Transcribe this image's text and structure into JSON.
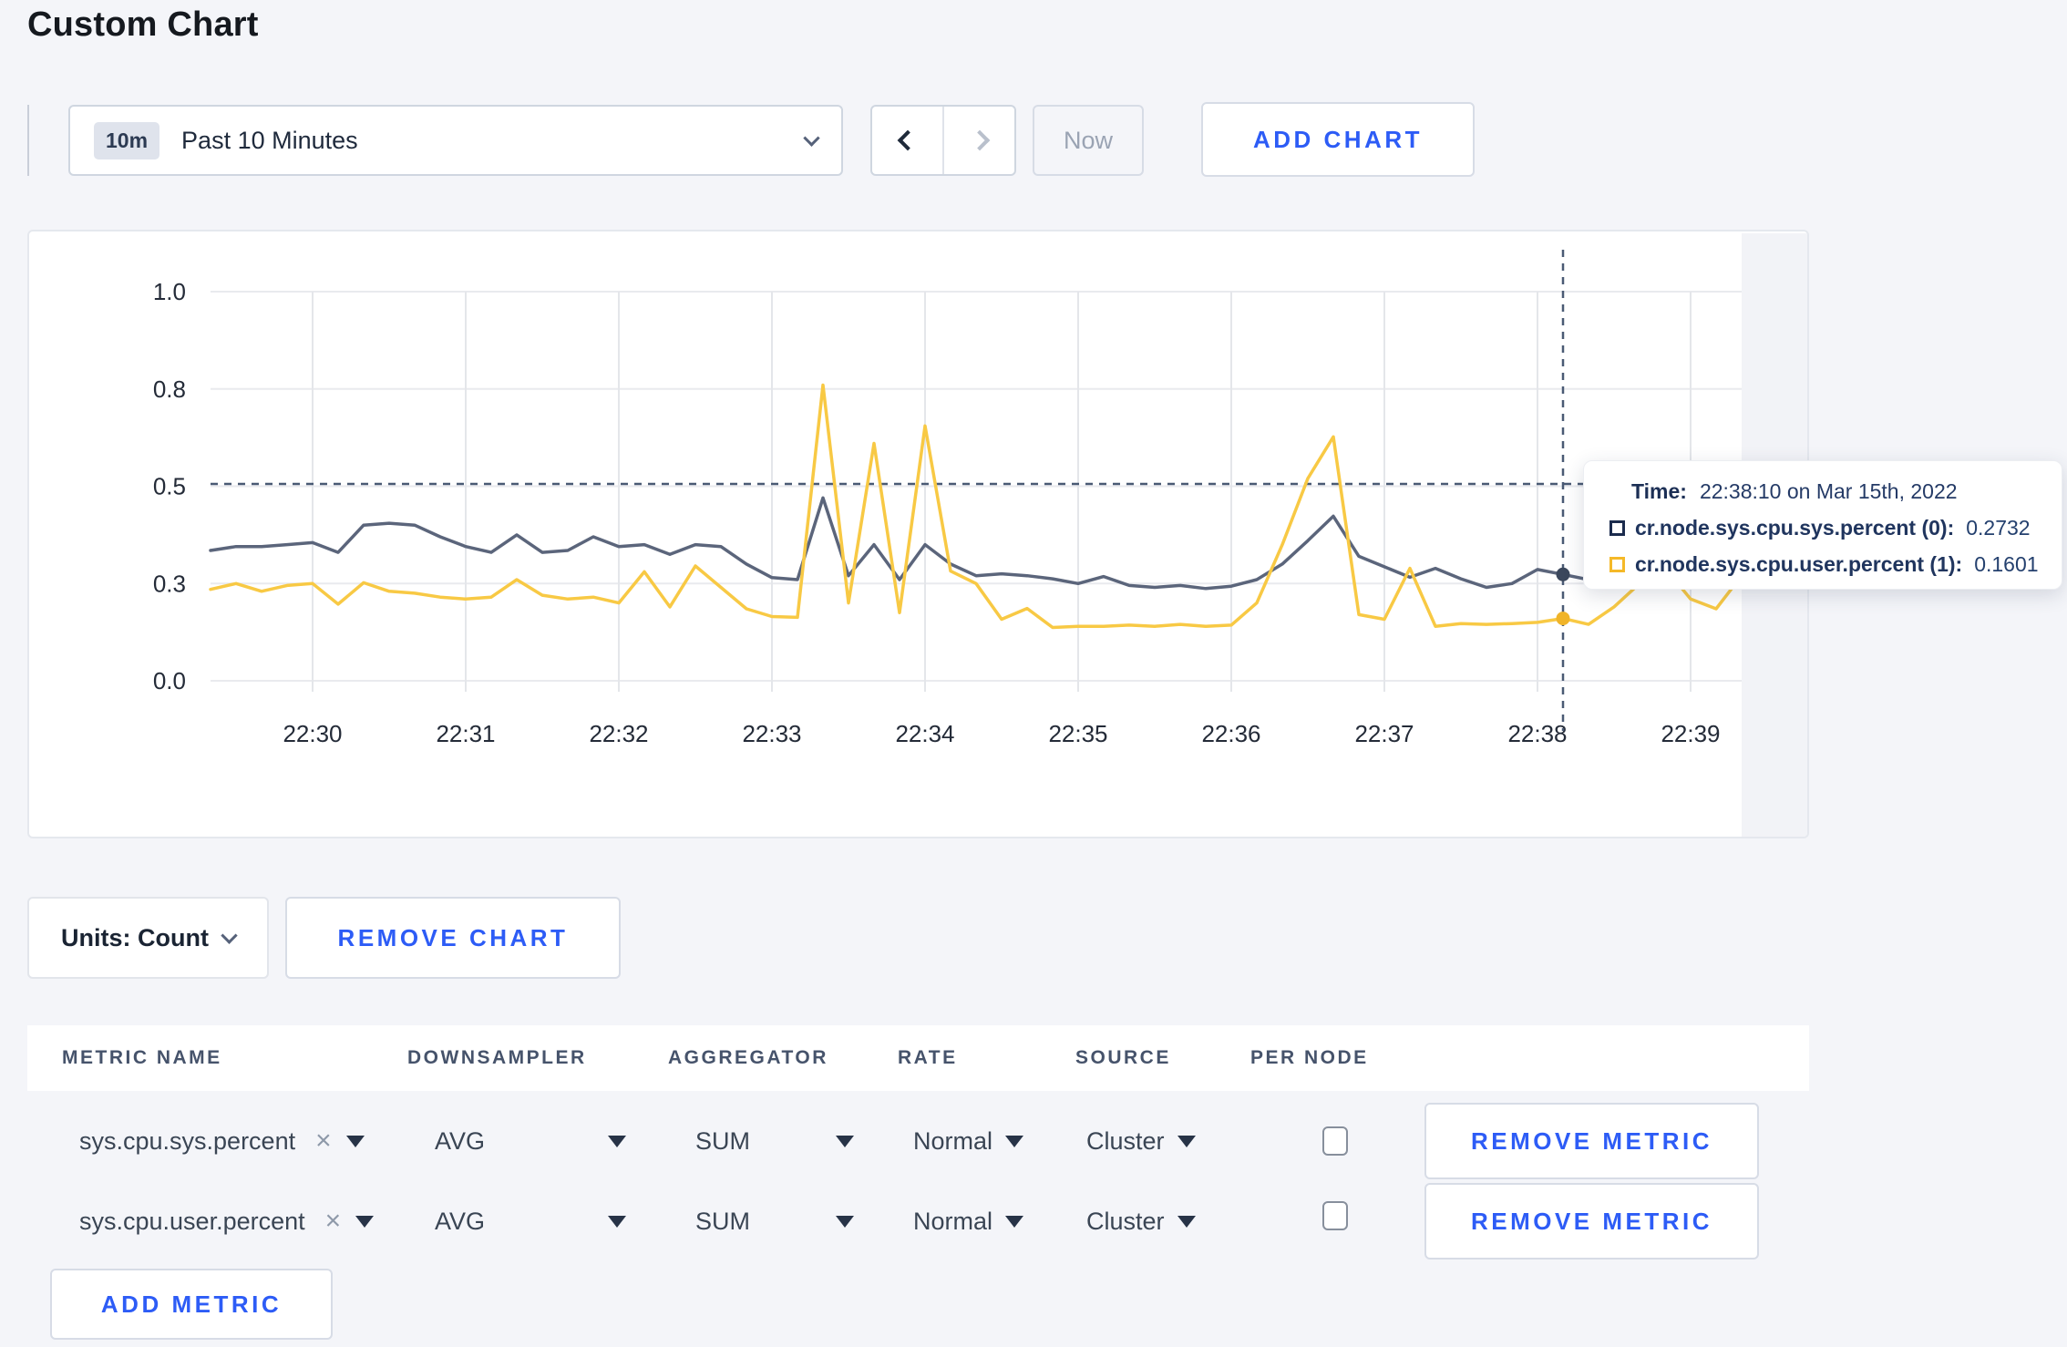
{
  "page": {
    "title": "Custom Chart",
    "background": "#f4f5f9"
  },
  "toolbar": {
    "timeframe_badge": "10m",
    "timeframe_label": "Past 10 Minutes",
    "now_label": "Now",
    "add_chart_label": "ADD CHART"
  },
  "chart_data": {
    "type": "line",
    "title": "",
    "x_axis": {
      "ticks": [
        "22:30",
        "22:31",
        "22:32",
        "22:33",
        "22:34",
        "22:35",
        "22:36",
        "22:37",
        "22:38",
        "22:39"
      ],
      "start_time": "22:29:20",
      "interval_seconds": 10
    },
    "y_axis": {
      "ticks": [
        {
          "label": "0.0",
          "value": 0
        },
        {
          "label": "0.3",
          "value": 0.25
        },
        {
          "label": "0.5",
          "value": 0.5
        },
        {
          "label": "0.8",
          "value": 0.75
        },
        {
          "label": "1.0",
          "value": 1
        }
      ],
      "range": [
        0,
        1
      ],
      "grid": true
    },
    "series": [
      {
        "name": "cr.node.sys.cpu.sys.percent",
        "node": "(0)",
        "color": "#5b657b",
        "dot_color": "#3b475c",
        "values": [
          0.335,
          0.345,
          0.345,
          0.35,
          0.355,
          0.33,
          0.4,
          0.405,
          0.4,
          0.37,
          0.345,
          0.33,
          0.375,
          0.33,
          0.335,
          0.37,
          0.345,
          0.35,
          0.325,
          0.35,
          0.345,
          0.3,
          0.265,
          0.26,
          0.47,
          0.27,
          0.35,
          0.26,
          0.35,
          0.3,
          0.27,
          0.275,
          0.27,
          0.262,
          0.25,
          0.268,
          0.245,
          0.24,
          0.245,
          0.237,
          0.243,
          0.26,
          0.3,
          0.36,
          0.423,
          0.32,
          0.293,
          0.266,
          0.289,
          0.262,
          0.24,
          0.25,
          0.286,
          0.2732,
          0.26,
          0.27,
          0.3,
          0.31,
          0.3,
          0.295,
          0.31
        ]
      },
      {
        "name": "cr.node.sys.cpu.user.percent",
        "node": "(1)",
        "color": "#f8c944",
        "dot_color": "#f0b429",
        "values": [
          0.235,
          0.25,
          0.23,
          0.245,
          0.25,
          0.197,
          0.252,
          0.23,
          0.225,
          0.215,
          0.21,
          0.215,
          0.26,
          0.22,
          0.21,
          0.215,
          0.2,
          0.28,
          0.19,
          0.295,
          0.24,
          0.185,
          0.165,
          0.163,
          0.76,
          0.2,
          0.61,
          0.175,
          0.655,
          0.282,
          0.25,
          0.158,
          0.186,
          0.137,
          0.14,
          0.14,
          0.143,
          0.14,
          0.145,
          0.14,
          0.143,
          0.2,
          0.35,
          0.52,
          0.627,
          0.17,
          0.158,
          0.289,
          0.14,
          0.147,
          0.145,
          0.147,
          0.15,
          0.1601,
          0.145,
          0.19,
          0.25,
          0.29,
          0.21,
          0.185,
          0.27
        ]
      }
    ],
    "crosshair": {
      "time": "22:38:10",
      "x_index": 53,
      "y_fraction": 0.506
    },
    "future_region_color": "#f2f3f7",
    "legend_position": "tooltip"
  },
  "tooltip": {
    "time_label": "Time:",
    "time_value": "22:38:10 on Mar 15th, 2022",
    "rows": [
      {
        "label": "cr.node.sys.cpu.sys.percent (0):",
        "value": "0.2732",
        "swatch_color": "#1b2b4d"
      },
      {
        "label": "cr.node.sys.cpu.user.percent (1):",
        "value": "0.1601",
        "swatch_color": "#f5b928"
      }
    ]
  },
  "chart_footer": {
    "units_label": "Units: Count",
    "remove_chart_label": "REMOVE CHART"
  },
  "metrics_table": {
    "headers": [
      "METRIC NAME",
      "DOWNSAMPLER",
      "AGGREGATOR",
      "RATE",
      "SOURCE",
      "PER NODE"
    ],
    "remove_icon": "×",
    "rows": [
      {
        "name": "sys.cpu.sys.percent",
        "downsampler": "AVG",
        "aggregator": "SUM",
        "rate": "Normal",
        "source": "Cluster",
        "per_node": false
      },
      {
        "name": "sys.cpu.user.percent",
        "downsampler": "AVG",
        "aggregator": "SUM",
        "rate": "Normal",
        "source": "Cluster",
        "per_node": false
      }
    ],
    "remove_metric_label": "REMOVE METRIC",
    "add_metric_label": "ADD METRIC"
  },
  "colors": {
    "accent_blue": "#2d5cf6",
    "navy_line": "#5b657b",
    "yellow_line": "#f8c944",
    "crosshair": "#4a5a74"
  }
}
